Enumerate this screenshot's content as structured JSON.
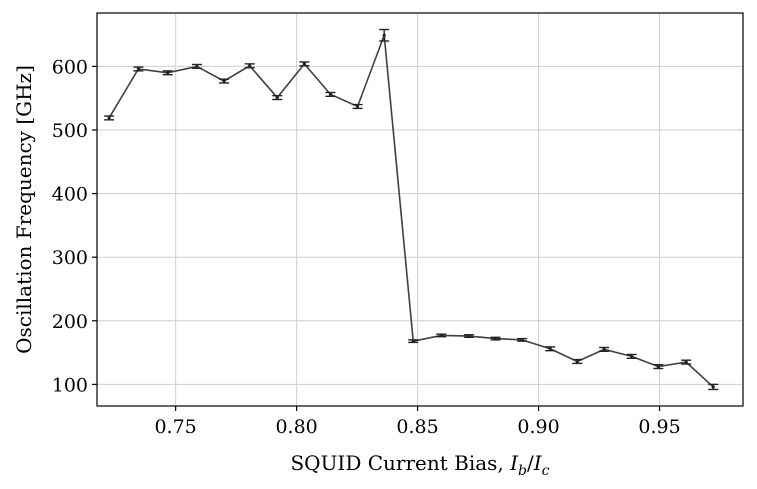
{
  "chart_data": {
    "type": "line",
    "title": "",
    "xlabel_text": "SQUID Current Bias, ",
    "xlabel_math": {
      "I": "I",
      "sub_b": "b",
      "slash": "/",
      "sub_c": "c"
    },
    "ylabel": "Oscillation Frequency [GHz]",
    "xlim": [
      0.7175,
      0.9845
    ],
    "ylim": [
      66,
      684
    ],
    "xticks": [
      0.75,
      0.8,
      0.85,
      0.9,
      0.95
    ],
    "xtick_labels": [
      "0.75",
      "0.80",
      "0.85",
      "0.90",
      "0.95"
    ],
    "yticks": [
      100,
      200,
      300,
      400,
      500,
      600
    ],
    "ytick_labels": [
      "100",
      "200",
      "300",
      "400",
      "500",
      "600"
    ],
    "grid": true,
    "line_color": "#404040",
    "series": [
      {
        "x": [
          0.7225,
          0.7346,
          0.7467,
          0.7588,
          0.77,
          0.7806,
          0.792,
          0.8032,
          0.814,
          0.8252,
          0.8362,
          0.8482,
          0.8598,
          0.8712,
          0.8822,
          0.8932,
          0.9048,
          0.916,
          0.9271,
          0.9385,
          0.9495,
          0.961,
          0.9722
        ],
        "y": [
          519,
          596,
          590,
          600,
          577,
          601,
          551,
          604,
          556,
          537,
          649,
          168,
          177,
          176,
          172,
          170,
          156,
          136,
          155,
          144,
          128,
          135,
          96
        ],
        "err": [
          3,
          3,
          3,
          3,
          3,
          3,
          3,
          3,
          3,
          3,
          9,
          2,
          2,
          2,
          2,
          2,
          3,
          3,
          3,
          3,
          3,
          3,
          4
        ]
      }
    ]
  }
}
